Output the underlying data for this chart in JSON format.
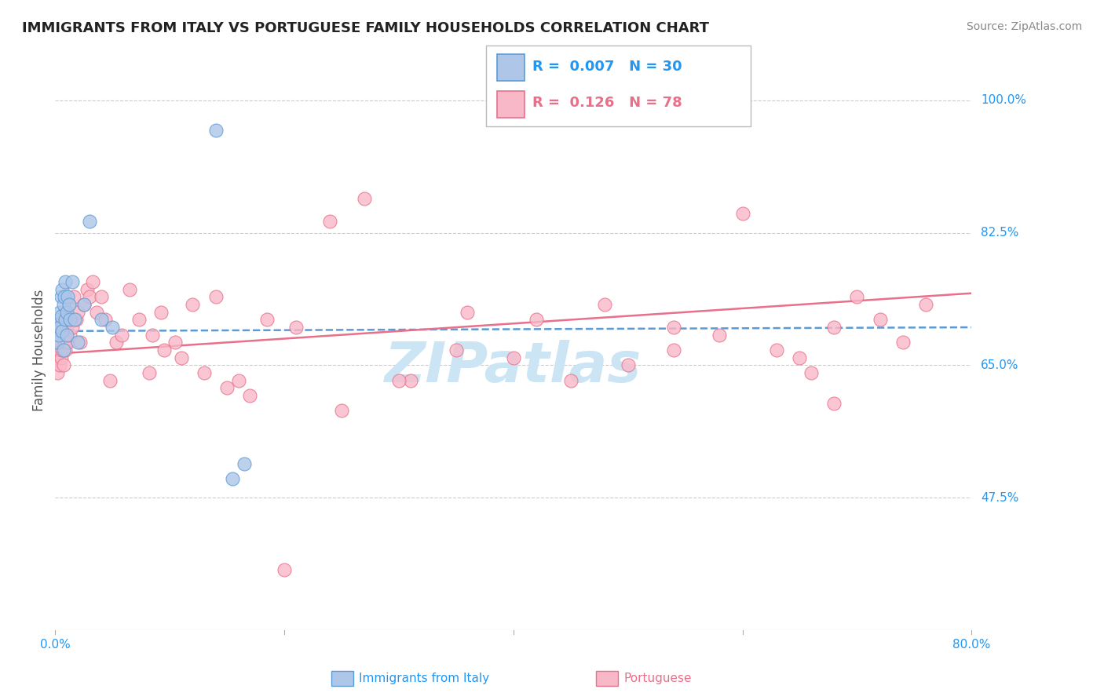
{
  "title": "IMMIGRANTS FROM ITALY VS PORTUGUESE FAMILY HOUSEHOLDS CORRELATION CHART",
  "source": "Source: ZipAtlas.com",
  "ylabel": "Family Households",
  "legend_italy_R": "0.007",
  "legend_italy_N": "30",
  "legend_port_R": "0.126",
  "legend_port_N": "78",
  "legend_label_italy": "Immigrants from Italy",
  "legend_label_port": "Portuguese",
  "color_italy_fill": "#aec6e8",
  "color_italy_edge": "#5b9bd5",
  "color_port_fill": "#f9b8c8",
  "color_port_edge": "#e8708a",
  "color_italy_line": "#5b9bd5",
  "color_port_line": "#e8708a",
  "watermark": "ZIPatlas",
  "watermark_color": "#cce5f5",
  "xlim": [
    0.0,
    0.8
  ],
  "ylim": [
    0.3,
    1.04
  ],
  "yticks": [
    0.475,
    0.65,
    0.825,
    1.0
  ],
  "ytick_labels": [
    "47.5%",
    "65.0%",
    "82.5%",
    "100.0%"
  ],
  "italy_x": [
    0.001,
    0.002,
    0.003,
    0.003,
    0.004,
    0.004,
    0.005,
    0.005,
    0.006,
    0.006,
    0.007,
    0.007,
    0.008,
    0.009,
    0.009,
    0.01,
    0.01,
    0.011,
    0.012,
    0.013,
    0.015,
    0.017,
    0.02,
    0.025,
    0.03,
    0.04,
    0.05,
    0.14,
    0.155,
    0.165
  ],
  "italy_y": [
    0.695,
    0.68,
    0.71,
    0.69,
    0.72,
    0.7,
    0.74,
    0.715,
    0.75,
    0.695,
    0.73,
    0.67,
    0.74,
    0.71,
    0.76,
    0.72,
    0.69,
    0.74,
    0.73,
    0.71,
    0.76,
    0.71,
    0.68,
    0.73,
    0.84,
    0.71,
    0.7,
    0.96,
    0.5,
    0.52
  ],
  "port_x": [
    0.001,
    0.002,
    0.002,
    0.003,
    0.003,
    0.004,
    0.004,
    0.005,
    0.005,
    0.006,
    0.006,
    0.007,
    0.007,
    0.008,
    0.008,
    0.009,
    0.01,
    0.011,
    0.012,
    0.013,
    0.014,
    0.015,
    0.016,
    0.018,
    0.02,
    0.022,
    0.025,
    0.028,
    0.03,
    0.033,
    0.036,
    0.04,
    0.044,
    0.048,
    0.053,
    0.058,
    0.065,
    0.073,
    0.082,
    0.092,
    0.105,
    0.12,
    0.14,
    0.16,
    0.185,
    0.21,
    0.24,
    0.27,
    0.31,
    0.36,
    0.42,
    0.48,
    0.54,
    0.6,
    0.66,
    0.68,
    0.7,
    0.72,
    0.74,
    0.76,
    0.68,
    0.65,
    0.63,
    0.58,
    0.54,
    0.5,
    0.45,
    0.4,
    0.35,
    0.3,
    0.25,
    0.2,
    0.17,
    0.15,
    0.13,
    0.11,
    0.095,
    0.085
  ],
  "port_y": [
    0.66,
    0.64,
    0.68,
    0.67,
    0.7,
    0.65,
    0.68,
    0.66,
    0.7,
    0.67,
    0.71,
    0.65,
    0.69,
    0.68,
    0.72,
    0.67,
    0.7,
    0.68,
    0.73,
    0.69,
    0.71,
    0.7,
    0.74,
    0.71,
    0.72,
    0.68,
    0.73,
    0.75,
    0.74,
    0.76,
    0.72,
    0.74,
    0.71,
    0.63,
    0.68,
    0.69,
    0.75,
    0.71,
    0.64,
    0.72,
    0.68,
    0.73,
    0.74,
    0.63,
    0.71,
    0.7,
    0.84,
    0.87,
    0.63,
    0.72,
    0.71,
    0.73,
    0.7,
    0.85,
    0.64,
    0.7,
    0.74,
    0.71,
    0.68,
    0.73,
    0.6,
    0.66,
    0.67,
    0.69,
    0.67,
    0.65,
    0.63,
    0.66,
    0.67,
    0.63,
    0.59,
    0.38,
    0.61,
    0.62,
    0.64,
    0.66,
    0.67,
    0.69
  ]
}
